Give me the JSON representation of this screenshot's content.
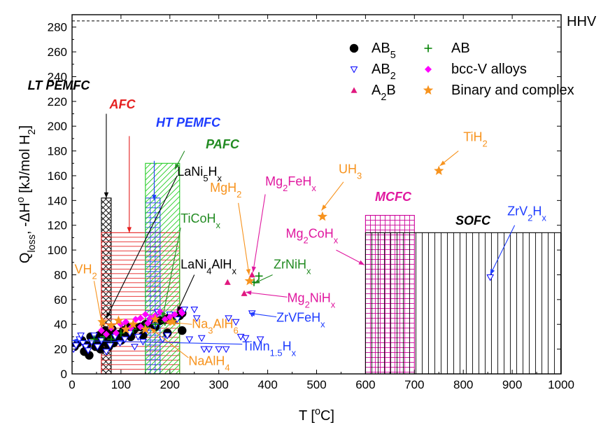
{
  "chart_data": {
    "type": "scatter",
    "xlabel": {
      "main": "T  [",
      "sup": "o",
      "tail": "C]"
    },
    "ylabel": {
      "q": "Q",
      "q_sub": "loss",
      "mid": ", -ΔH",
      "h_sup": "o",
      "unit": " [kJ/mol H",
      "unit_sub": "2",
      "close": "]"
    },
    "xlim": [
      0,
      1000
    ],
    "ylim": [
      0,
      290
    ],
    "xticks": [
      "0",
      "100",
      "200",
      "300",
      "400",
      "500",
      "600",
      "700",
      "800",
      "900",
      "1000"
    ],
    "yticks": [
      "0",
      "20",
      "40",
      "60",
      "80",
      "100",
      "120",
      "140",
      "160",
      "180",
      "200",
      "220",
      "240",
      "260",
      "280"
    ],
    "hhv": {
      "value": 285,
      "label": "HHV"
    },
    "legend": [
      {
        "main": "AB",
        "sub": "5",
        "marker": "circle",
        "color": "#000000"
      },
      {
        "main": "AB",
        "sub": "2",
        "marker": "triangle-down-open",
        "color": "#0000ff"
      },
      {
        "main": "A",
        "sub": "2",
        "tail": "B",
        "marker": "triangle-up",
        "color": "#e0187f"
      },
      {
        "main": "AB",
        "sub": "",
        "marker": "plus",
        "color": "#008000"
      },
      {
        "main": "bcc-V alloys",
        "sub": "",
        "marker": "diamond",
        "color": "#ff00ff"
      },
      {
        "main": "Binary and complex",
        "sub": "",
        "marker": "star",
        "color": "#f7931e"
      }
    ],
    "zones": [
      {
        "name": "LT PEMFC",
        "x0": 60,
        "x1": 80,
        "y": 142,
        "color": "#000000",
        "pattern": "cross"
      },
      {
        "name": "AFC",
        "x0": 60,
        "x1": 220,
        "y": 114,
        "color": "#e52020",
        "pattern": "hlines"
      },
      {
        "name": "HT PEMFC",
        "x0": 150,
        "x1": 180,
        "y": 142,
        "color": "#1e3cff",
        "pattern": "grid"
      },
      {
        "name": "PAFC",
        "x0": 150,
        "x1": 220,
        "y": 170,
        "color": "#22cc22",
        "pattern": "diag"
      },
      {
        "name": "MCFC",
        "x0": 600,
        "x1": 700,
        "y": 128,
        "color": "#cc0099",
        "pattern": "grid"
      },
      {
        "name": "SOFC",
        "x0": 600,
        "x1": 1000,
        "y": 114,
        "color": "#000000",
        "pattern": "vlines"
      }
    ],
    "zone_labels": [
      {
        "text": "LT PEMFC",
        "color": "#000000",
        "ax": 70,
        "ay": 210,
        "bx": 70,
        "by": 142
      },
      {
        "text": "AFC",
        "color": "#e52020",
        "ax": 117,
        "ay": 192,
        "bx": 117,
        "by": 114
      },
      {
        "text": "HT PEMFC",
        "color": "#1e3cff",
        "ax": 168,
        "ay": 172,
        "bx": 168,
        "by": 140
      },
      {
        "text": "PAFC",
        "color": "#228b22",
        "ax": 230,
        "ay": 180,
        "bx": 210,
        "by": 165
      },
      {
        "text": "MCFC",
        "color": "#e0189f",
        "ax": null,
        "ay": null,
        "bx": null,
        "by": null
      },
      {
        "text": "SOFC",
        "color": "#000000",
        "ax": null,
        "ay": null,
        "bx": null,
        "by": null
      }
    ],
    "annotations": [
      {
        "parts": [
          [
            "LaNi",
            "n"
          ],
          [
            "5",
            "sub"
          ],
          [
            "H",
            "n"
          ],
          [
            "x",
            "sub"
          ]
        ],
        "color": "#000000",
        "lx": 215,
        "ly": 160,
        "ax": 215,
        "ay": 160,
        "bx": 70,
        "by": 45
      },
      {
        "parts": [
          [
            "TiCoH",
            "n"
          ],
          [
            "x",
            "sub"
          ]
        ],
        "color": "#228b22",
        "lx": 222,
        "ly": 122,
        "ax": 222,
        "ay": 118,
        "bx": 185,
        "by": 45
      },
      {
        "parts": [
          [
            "LaNi",
            "n"
          ],
          [
            "4",
            "sub"
          ],
          [
            "AlH",
            "n"
          ],
          [
            "x",
            "sub"
          ]
        ],
        "color": "#000000",
        "lx": 222,
        "ly": 85,
        "ax": 250,
        "ay": 80,
        "bx": 215,
        "by": 50
      },
      {
        "parts": [
          [
            "VH",
            "n"
          ],
          [
            "2",
            "sub"
          ]
        ],
        "color": "#f7931e",
        "lx": 5,
        "ly": 81,
        "ax": 45,
        "ay": 75,
        "bx": 62,
        "by": 38
      },
      {
        "parts": [
          [
            "MgH",
            "n"
          ],
          [
            "2",
            "sub"
          ]
        ],
        "color": "#f7931e",
        "lx": 282,
        "ly": 147,
        "ax": 340,
        "ay": 138,
        "bx": 362,
        "by": 80
      },
      {
        "parts": [
          [
            "Mg",
            "n"
          ],
          [
            "2",
            "sub"
          ],
          [
            "FeH",
            "n"
          ],
          [
            "x",
            "sub"
          ]
        ],
        "color": "#e0189f",
        "lx": 395,
        "ly": 152,
        "ax": 395,
        "ay": 145,
        "bx": 370,
        "by": 82
      },
      {
        "parts": [
          [
            "UH",
            "n"
          ],
          [
            "3",
            "sub"
          ]
        ],
        "color": "#f7931e",
        "lx": 545,
        "ly": 162,
        "ax": 555,
        "ay": 155,
        "bx": 510,
        "by": 132
      },
      {
        "parts": [
          [
            "TiH",
            "n"
          ],
          [
            "2",
            "sub"
          ]
        ],
        "color": "#f7931e",
        "lx": 800,
        "ly": 188,
        "ax": 790,
        "ay": 180,
        "bx": 752,
        "by": 168
      },
      {
        "parts": [
          [
            "Mg",
            "n"
          ],
          [
            "2",
            "sub"
          ],
          [
            "CoH",
            "n"
          ],
          [
            "x",
            "sub"
          ]
        ],
        "color": "#e0189f",
        "lx": 437,
        "ly": 110,
        "ax": 540,
        "ay": 100,
        "bx": 598,
        "by": 88
      },
      {
        "parts": [
          [
            "ZrNiH",
            "n"
          ],
          [
            "x",
            "sub"
          ]
        ],
        "color": "#228b22",
        "lx": 412,
        "ly": 85,
        "ax": 410,
        "ay": 80,
        "bx": 372,
        "by": 73
      },
      {
        "parts": [
          [
            "Mg",
            "n"
          ],
          [
            "2",
            "sub"
          ],
          [
            "NiH",
            "n"
          ],
          [
            "x",
            "sub"
          ]
        ],
        "color": "#e0189f",
        "lx": 440,
        "ly": 58,
        "ax": 440,
        "ay": 62,
        "bx": 355,
        "by": 66
      },
      {
        "parts": [
          [
            "ZrVFeH",
            "n"
          ],
          [
            "x",
            "sub"
          ]
        ],
        "color": "#1e3cff",
        "lx": 418,
        "ly": 42,
        "ax": 418,
        "ay": 46,
        "bx": 362,
        "by": 49
      },
      {
        "parts": [
          [
            "Na",
            "n"
          ],
          [
            "3",
            "sub"
          ],
          [
            "AlH",
            "n"
          ],
          [
            "6",
            "sub"
          ]
        ],
        "color": "#f7931e",
        "lx": 245,
        "ly": 37,
        "ax": 245,
        "ay": 40,
        "bx": 190,
        "by": 42
      },
      {
        "parts": [
          [
            "NaAlH",
            "n"
          ],
          [
            "4",
            "sub"
          ]
        ],
        "color": "#f7931e",
        "lx": 238,
        "ly": 7,
        "ax": 238,
        "ay": 13,
        "bx": 160,
        "by": 37
      },
      {
        "parts": [
          [
            "TiMn",
            "n"
          ],
          [
            "1.5",
            "sub"
          ],
          [
            "H",
            "n"
          ],
          [
            "x",
            "sub"
          ]
        ],
        "color": "#1e3cff",
        "lx": 348,
        "ly": 19,
        "ax": 348,
        "ay": 24,
        "bx": 0,
        "by": 27
      },
      {
        "parts": [
          [
            "ZrV",
            "n"
          ],
          [
            "2",
            "sub"
          ],
          [
            "H",
            "n"
          ],
          [
            "x",
            "sub"
          ]
        ],
        "color": "#1e3cff",
        "lx": 890,
        "ly": 128,
        "ax": 905,
        "ay": 120,
        "bx": 855,
        "by": 80
      }
    ],
    "series": [
      {
        "name": "AB5",
        "marker": "circle",
        "color": "#000000",
        "points": [
          [
            5,
            22
          ],
          [
            12,
            25
          ],
          [
            20,
            27
          ],
          [
            25,
            18
          ],
          [
            30,
            23
          ],
          [
            35,
            15
          ],
          [
            38,
            30
          ],
          [
            42,
            28
          ],
          [
            48,
            22
          ],
          [
            50,
            26
          ],
          [
            55,
            31
          ],
          [
            58,
            20
          ],
          [
            62,
            33
          ],
          [
            65,
            26
          ],
          [
            68,
            35
          ],
          [
            72,
            29
          ],
          [
            75,
            22
          ],
          [
            80,
            33
          ],
          [
            82,
            36
          ],
          [
            85,
            25
          ],
          [
            90,
            28
          ],
          [
            95,
            32
          ],
          [
            100,
            27
          ],
          [
            105,
            35
          ],
          [
            110,
            33
          ],
          [
            115,
            38
          ],
          [
            120,
            30
          ],
          [
            125,
            35
          ],
          [
            130,
            37
          ],
          [
            140,
            38
          ],
          [
            145,
            31
          ],
          [
            150,
            40
          ],
          [
            160,
            41
          ],
          [
            170,
            38
          ],
          [
            180,
            43
          ],
          [
            190,
            44
          ],
          [
            200,
            46
          ],
          [
            210,
            45
          ],
          [
            220,
            47
          ],
          [
            225,
            49
          ],
          [
            225,
            35
          ],
          [
            195,
            33
          ]
        ]
      },
      {
        "name": "AB2",
        "marker": "triangle-down-open",
        "color": "#0000ff",
        "points": [
          [
            3,
            20
          ],
          [
            8,
            23
          ],
          [
            15,
            28
          ],
          [
            18,
            31
          ],
          [
            22,
            25
          ],
          [
            28,
            22
          ],
          [
            33,
            19
          ],
          [
            40,
            26
          ],
          [
            45,
            31
          ],
          [
            52,
            22
          ],
          [
            60,
            27
          ],
          [
            70,
            18
          ],
          [
            78,
            23
          ],
          [
            88,
            30
          ],
          [
            98,
            25
          ],
          [
            108,
            28
          ],
          [
            118,
            33
          ],
          [
            128,
            22
          ],
          [
            135,
            30
          ],
          [
            145,
            26
          ],
          [
            152,
            35
          ],
          [
            160,
            43
          ],
          [
            170,
            39
          ],
          [
            175,
            50
          ],
          [
            185,
            28
          ],
          [
            195,
            31
          ],
          [
            200,
            48
          ],
          [
            215,
            44
          ],
          [
            230,
            52
          ],
          [
            240,
            28
          ],
          [
            250,
            52
          ],
          [
            255,
            45
          ],
          [
            265,
            29
          ],
          [
            270,
            20
          ],
          [
            280,
            20
          ],
          [
            300,
            20
          ],
          [
            315,
            20
          ],
          [
            320,
            45
          ],
          [
            335,
            42
          ],
          [
            345,
            30
          ],
          [
            355,
            29
          ],
          [
            368,
            49
          ],
          [
            385,
            28
          ],
          [
            855,
            78
          ]
        ]
      },
      {
        "name": "A2B",
        "marker": "triangle-up",
        "color": "#e0187f",
        "points": [
          [
            318,
            74
          ],
          [
            352,
            65
          ],
          [
            368,
            80
          ]
        ]
      },
      {
        "name": "AB",
        "marker": "plus",
        "color": "#008000",
        "points": [
          [
            45,
            28
          ],
          [
            65,
            30
          ],
          [
            80,
            28
          ],
          [
            100,
            33
          ],
          [
            125,
            36
          ],
          [
            148,
            38
          ],
          [
            170,
            40
          ],
          [
            190,
            42
          ],
          [
            205,
            44
          ],
          [
            372,
            74
          ],
          [
            382,
            79
          ]
        ]
      },
      {
        "name": "bcc-V alloys",
        "marker": "diamond",
        "color": "#ff00ff",
        "points": [
          [
            60,
            35
          ],
          [
            70,
            32
          ],
          [
            80,
            37
          ],
          [
            90,
            33
          ],
          [
            100,
            40
          ],
          [
            110,
            42
          ],
          [
            120,
            37
          ],
          [
            130,
            44
          ],
          [
            140,
            45
          ],
          [
            150,
            48
          ],
          [
            160,
            45
          ],
          [
            170,
            47
          ],
          [
            180,
            50
          ],
          [
            190,
            44
          ],
          [
            200,
            46
          ],
          [
            210,
            48
          ],
          [
            220,
            52
          ],
          [
            225,
            49
          ],
          [
            140,
            38
          ],
          [
            155,
            41
          ]
        ]
      },
      {
        "name": "Binary and complex",
        "marker": "star",
        "color": "#f7931e",
        "points": [
          [
            62,
            42
          ],
          [
            80,
            39
          ],
          [
            95,
            43
          ],
          [
            110,
            36
          ],
          [
            125,
            40
          ],
          [
            150,
            36
          ],
          [
            170,
            44
          ],
          [
            205,
            42
          ],
          [
            363,
            75
          ],
          [
            512,
            127
          ],
          [
            750,
            164
          ]
        ]
      }
    ]
  }
}
